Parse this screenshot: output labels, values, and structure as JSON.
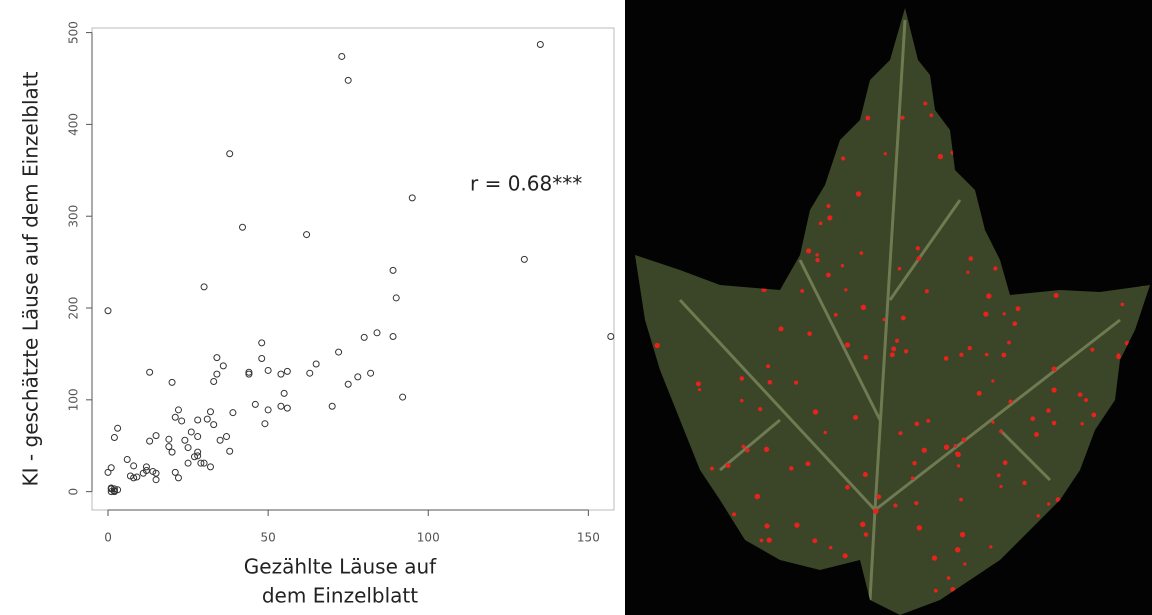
{
  "chart_data": {
    "type": "scatter",
    "ylabel": "KI - geschätzte Läuse auf dem Einzelblatt",
    "xlabel": [
      "Gezählte Läuse auf",
      "dem Einzelblatt"
    ],
    "annotation": "r = 0.68***",
    "xlim": [
      -5,
      158
    ],
    "ylim": [
      -20,
      505
    ],
    "xticks": [
      0,
      50,
      100,
      150
    ],
    "yticks": [
      0,
      100,
      200,
      300,
      400,
      500
    ],
    "color": "#333333",
    "x": [
      0,
      73,
      75,
      135,
      38,
      95,
      42,
      62,
      30,
      130,
      89,
      90,
      157,
      89,
      84,
      80,
      48,
      34,
      36,
      48,
      13,
      72,
      65,
      63,
      82,
      78,
      75,
      44,
      44,
      50,
      54,
      56,
      33,
      20,
      34,
      92,
      55,
      46,
      50,
      54,
      56,
      70,
      39,
      22,
      21,
      23,
      32,
      31,
      28,
      33,
      49,
      3,
      2,
      13,
      15,
      26,
      24,
      28,
      35,
      37,
      38,
      19,
      19,
      20,
      25,
      28,
      28,
      29,
      27,
      25,
      30,
      32,
      6,
      8,
      7,
      8,
      12,
      11,
      12,
      14,
      15,
      15,
      21,
      22,
      0,
      1,
      1,
      1,
      2,
      2,
      3,
      1,
      2,
      9
    ],
    "y": [
      197,
      474,
      448,
      487,
      368,
      320,
      288,
      280,
      223,
      253,
      241,
      211,
      169,
      169,
      173,
      168,
      162,
      146,
      137,
      145,
      130,
      152,
      139,
      129,
      129,
      125,
      117,
      130,
      128,
      132,
      128,
      131,
      120,
      119,
      128,
      103,
      107,
      95,
      89,
      93,
      91,
      93,
      86,
      89,
      81,
      77,
      87,
      79,
      78,
      73,
      74,
      69,
      59,
      55,
      61,
      65,
      56,
      60,
      56,
      60,
      44,
      57,
      49,
      43,
      48,
      43,
      39,
      31,
      38,
      31,
      31,
      27,
      35,
      28,
      17,
      15,
      27,
      20,
      23,
      22,
      20,
      13,
      21,
      15,
      21,
      26,
      3,
      0,
      1,
      3,
      2,
      4,
      0,
      16
    ]
  }
}
